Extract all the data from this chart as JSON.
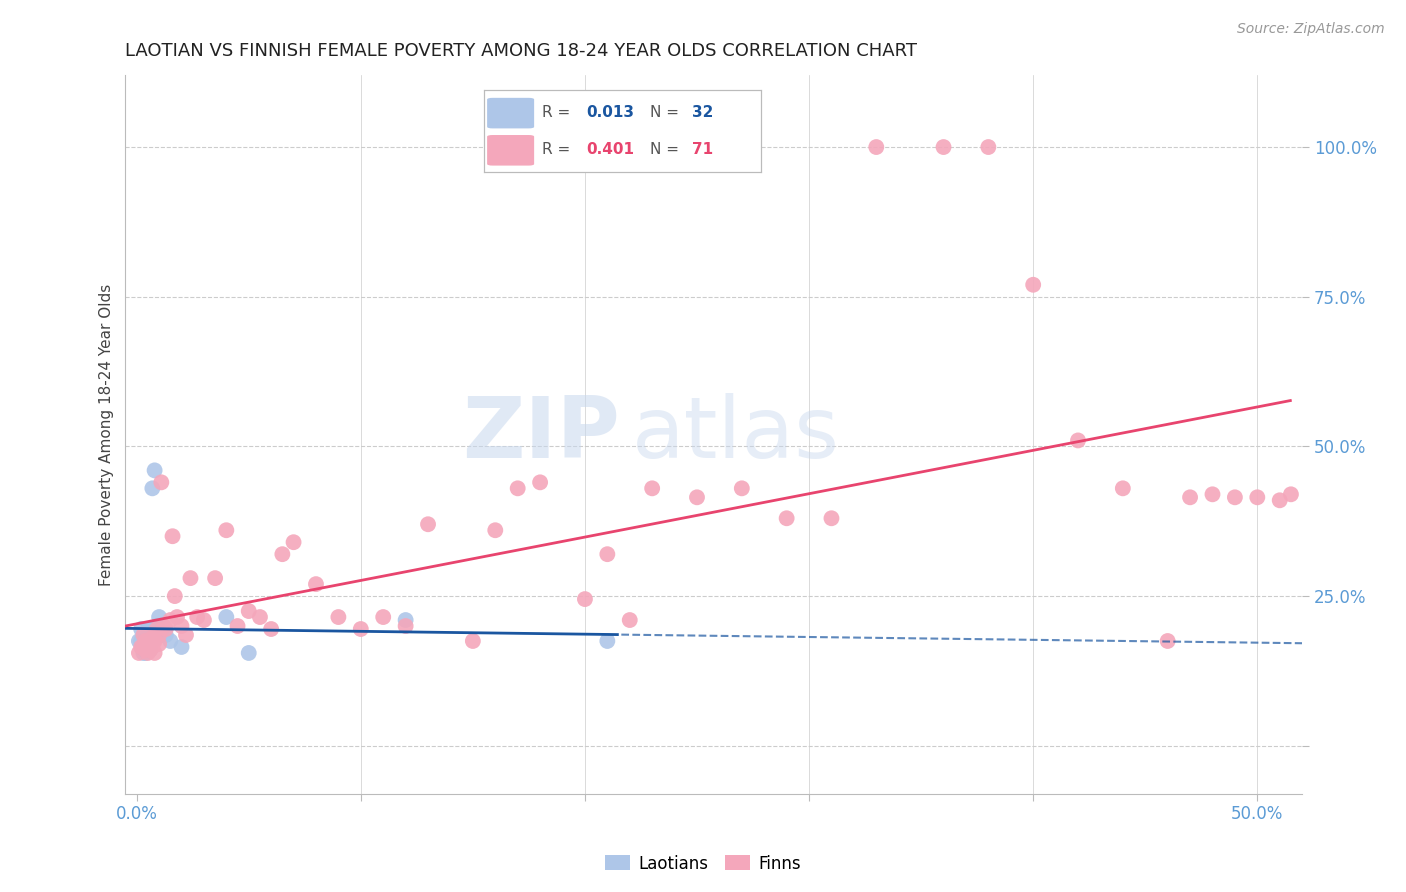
{
  "title": "LAOTIAN VS FINNISH FEMALE POVERTY AMONG 18-24 YEAR OLDS CORRELATION CHART",
  "source": "Source: ZipAtlas.com",
  "ylabel": "Female Poverty Among 18-24 Year Olds",
  "xlim": [
    -0.005,
    0.52
  ],
  "ylim": [
    -0.08,
    1.12
  ],
  "background_color": "#ffffff",
  "grid_color": "#cccccc",
  "axis_label_color": "#5b9bd5",
  "laotian_color": "#aec6e8",
  "finn_color": "#f4a7bb",
  "laotian_line_color": "#1a56a0",
  "finn_line_color": "#e8446e",
  "laotian_R": 0.013,
  "laotian_N": 32,
  "finn_R": 0.401,
  "finn_N": 71,
  "watermark_zip": "ZIP",
  "watermark_atlas": "atlas",
  "laotian_x": [
    0.001,
    0.002,
    0.002,
    0.003,
    0.003,
    0.003,
    0.004,
    0.004,
    0.004,
    0.004,
    0.004,
    0.005,
    0.005,
    0.005,
    0.005,
    0.006,
    0.006,
    0.006,
    0.007,
    0.007,
    0.007,
    0.008,
    0.009,
    0.01,
    0.011,
    0.013,
    0.015,
    0.02,
    0.04,
    0.05,
    0.12,
    0.21
  ],
  "laotian_y": [
    0.175,
    0.175,
    0.195,
    0.165,
    0.175,
    0.155,
    0.16,
    0.155,
    0.16,
    0.17,
    0.165,
    0.185,
    0.185,
    0.195,
    0.175,
    0.165,
    0.16,
    0.185,
    0.195,
    0.175,
    0.43,
    0.46,
    0.2,
    0.215,
    0.185,
    0.185,
    0.175,
    0.165,
    0.215,
    0.155,
    0.21,
    0.175
  ],
  "finn_x": [
    0.001,
    0.002,
    0.003,
    0.003,
    0.004,
    0.004,
    0.004,
    0.005,
    0.005,
    0.005,
    0.006,
    0.006,
    0.007,
    0.007,
    0.007,
    0.008,
    0.008,
    0.009,
    0.01,
    0.01,
    0.011,
    0.012,
    0.013,
    0.015,
    0.016,
    0.017,
    0.018,
    0.02,
    0.022,
    0.024,
    0.027,
    0.03,
    0.035,
    0.04,
    0.045,
    0.05,
    0.055,
    0.06,
    0.065,
    0.07,
    0.08,
    0.09,
    0.1,
    0.11,
    0.12,
    0.13,
    0.15,
    0.16,
    0.17,
    0.18,
    0.2,
    0.21,
    0.22,
    0.23,
    0.25,
    0.27,
    0.29,
    0.31,
    0.33,
    0.36,
    0.38,
    0.4,
    0.42,
    0.44,
    0.46,
    0.47,
    0.48,
    0.49,
    0.5,
    0.51,
    0.515
  ],
  "finn_y": [
    0.155,
    0.165,
    0.165,
    0.185,
    0.16,
    0.17,
    0.175,
    0.165,
    0.155,
    0.175,
    0.16,
    0.175,
    0.165,
    0.18,
    0.175,
    0.175,
    0.155,
    0.195,
    0.17,
    0.185,
    0.44,
    0.2,
    0.195,
    0.21,
    0.35,
    0.25,
    0.215,
    0.2,
    0.185,
    0.28,
    0.215,
    0.21,
    0.28,
    0.36,
    0.2,
    0.225,
    0.215,
    0.195,
    0.32,
    0.34,
    0.27,
    0.215,
    0.195,
    0.215,
    0.2,
    0.37,
    0.175,
    0.36,
    0.43,
    0.44,
    0.245,
    0.32,
    0.21,
    0.43,
    0.415,
    0.43,
    0.38,
    0.38,
    1.0,
    1.0,
    1.0,
    0.77,
    0.51,
    0.43,
    0.175,
    0.415,
    0.42,
    0.415,
    0.415,
    0.41,
    0.42
  ]
}
